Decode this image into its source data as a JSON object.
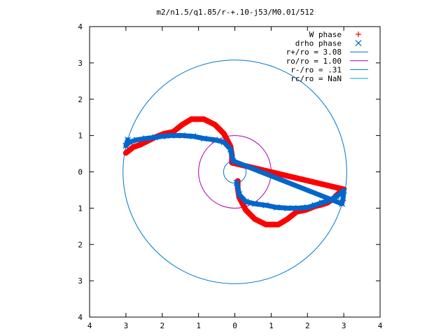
{
  "chart_data": {
    "type": "scatter",
    "title": "m2/n1.5/q1.85/r-+.10-j53/M0.01/512",
    "xlabel": "",
    "ylabel": "",
    "xlim": [
      -4,
      4
    ],
    "ylim": [
      -4,
      4
    ],
    "x_tick_labels": [
      "4",
      "3",
      "2",
      "1",
      "0",
      "1",
      "2",
      "3",
      "4"
    ],
    "y_tick_labels": [
      "4",
      "3",
      "2",
      "1",
      "0",
      "1",
      "2",
      "3",
      "4"
    ],
    "grid": false,
    "legend_position": "top-right",
    "series": [
      {
        "name": "W phase",
        "kind": "points",
        "marker": "plus",
        "color": "#ff0000",
        "points": [
          [
            0.08,
            -0.25
          ],
          [
            0.08,
            -0.45
          ],
          [
            0.12,
            -0.7
          ],
          [
            0.3,
            -1.05
          ],
          [
            0.55,
            -1.3
          ],
          [
            0.85,
            -1.45
          ],
          [
            1.2,
            -1.45
          ],
          [
            1.45,
            -1.3
          ],
          [
            1.7,
            -1.1
          ],
          [
            1.95,
            -1.05
          ],
          [
            2.2,
            -0.95
          ],
          [
            2.4,
            -0.9
          ],
          [
            2.55,
            -0.85
          ],
          [
            2.7,
            -0.75
          ],
          [
            2.85,
            -0.6
          ],
          [
            3.0,
            -0.48
          ],
          [
            -0.08,
            0.25
          ],
          [
            -0.08,
            0.45
          ],
          [
            -0.12,
            0.7
          ],
          [
            -0.3,
            1.05
          ],
          [
            -0.55,
            1.3
          ],
          [
            -0.85,
            1.45
          ],
          [
            -1.2,
            1.45
          ],
          [
            -1.45,
            1.3
          ],
          [
            -1.7,
            1.1
          ],
          [
            -1.95,
            1.05
          ],
          [
            -2.2,
            0.95
          ],
          [
            -2.4,
            0.85
          ],
          [
            -2.6,
            0.75
          ],
          [
            -2.8,
            0.68
          ],
          [
            -3.0,
            0.52
          ]
        ]
      },
      {
        "name": "drho phase",
        "kind": "points",
        "marker": "cross",
        "color": "#0066cc",
        "points": [
          [
            0.05,
            -0.3
          ],
          [
            0.12,
            -0.62
          ],
          [
            0.3,
            -0.82
          ],
          [
            0.55,
            -0.88
          ],
          [
            0.85,
            -0.92
          ],
          [
            1.15,
            -0.98
          ],
          [
            1.45,
            -1.0
          ],
          [
            1.75,
            -1.0
          ],
          [
            2.0,
            -0.98
          ],
          [
            2.2,
            -0.92
          ],
          [
            2.4,
            -0.85
          ],
          [
            2.6,
            -0.78
          ],
          [
            2.8,
            -0.68
          ],
          [
            3.0,
            -0.52
          ],
          [
            2.98,
            -0.72
          ],
          [
            2.95,
            -0.88
          ],
          [
            -0.05,
            0.3
          ],
          [
            -0.12,
            0.62
          ],
          [
            -0.3,
            0.82
          ],
          [
            -0.55,
            0.88
          ],
          [
            -0.85,
            0.92
          ],
          [
            -1.15,
            0.98
          ],
          [
            -1.45,
            1.0
          ],
          [
            -1.75,
            1.0
          ],
          [
            -2.0,
            0.98
          ],
          [
            -2.2,
            0.95
          ],
          [
            -2.45,
            0.92
          ],
          [
            -2.7,
            0.88
          ],
          [
            -2.9,
            0.82
          ],
          [
            -3.0,
            0.72
          ],
          [
            -2.95,
            0.88
          ]
        ]
      },
      {
        "name": "r+/ro = 3.08",
        "kind": "circle",
        "radius": 3.08,
        "color": "#0077cc"
      },
      {
        "name": "ro/ro = 1.00",
        "kind": "circle",
        "radius": 1.0,
        "color": "#aa00aa"
      },
      {
        "name": "r-/ro = .31",
        "kind": "circle",
        "radius": 0.31,
        "color": "#0077cc"
      },
      {
        "name": "rc/ro = NaN",
        "kind": "circle",
        "radius": null,
        "color": "#00aadd"
      }
    ]
  }
}
